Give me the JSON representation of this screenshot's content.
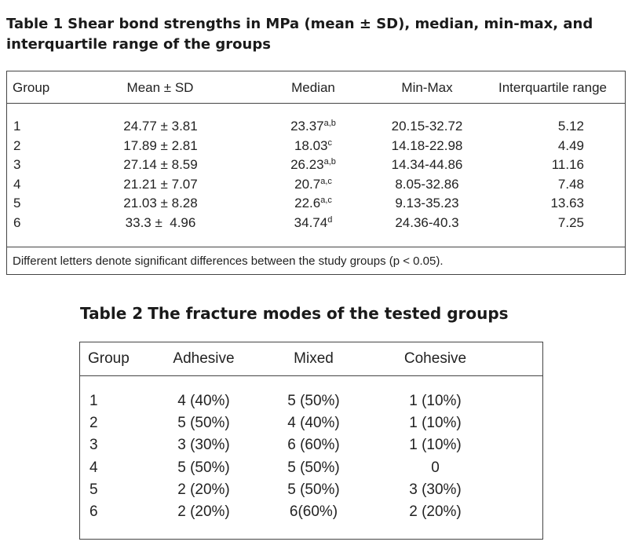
{
  "table1": {
    "label": "Table 1",
    "title_line1": "Shear bond strengths in MPa (mean ± SD), median, min-max, and",
    "title_line2": "interquartile range of the groups",
    "headers": [
      "Group",
      "Mean ± SD",
      "Median",
      "Min-Max",
      "Interquartile range"
    ],
    "rows": [
      {
        "group": "1",
        "mean_sd": "24.77 ± 3.81",
        "median": "23.37",
        "median_sup": "a,b",
        "minmax": "20.15-32.72",
        "iqr": "5.12"
      },
      {
        "group": "2",
        "mean_sd": "17.89 ± 2.81",
        "median": "18.03",
        "median_sup": "c",
        "minmax": "14.18-22.98",
        "iqr": "4.49"
      },
      {
        "group": "3",
        "mean_sd": "27.14 ± 8.59",
        "median": "26.23",
        "median_sup": "a,b",
        "minmax": "14.34-44.86",
        "iqr": "11.16"
      },
      {
        "group": "4",
        "mean_sd": "21.21 ± 7.07",
        "median": "20.7",
        "median_sup": "a,c",
        "minmax": "8.05-32.86",
        "iqr": "7.48"
      },
      {
        "group": "5",
        "mean_sd": "21.03 ± 8.28",
        "median": "22.6",
        "median_sup": "a,c",
        "minmax": "9.13-35.23",
        "iqr": "13.63"
      },
      {
        "group": "6",
        "mean_sd": "33.3 ±  4.96",
        "median": "34.74",
        "median_sup": "d",
        "minmax": "24.36-40.3",
        "iqr": "7.25"
      }
    ],
    "footnote": "Different letters denote significant differences between the study groups (p < 0.05)."
  },
  "table2": {
    "label": "Table 2",
    "title": "The fracture modes of the tested groups",
    "headers": [
      "Group",
      "Adhesive",
      "Mixed",
      "Cohesive"
    ],
    "rows": [
      {
        "group": "1",
        "adhesive": "4 (40%)",
        "mixed": "5 (50%)",
        "cohesive": "1 (10%)"
      },
      {
        "group": "2",
        "adhesive": "5 (50%)",
        "mixed": "4 (40%)",
        "cohesive": "1 (10%)"
      },
      {
        "group": "3",
        "adhesive": "3 (30%)",
        "mixed": "6 (60%)",
        "cohesive": "1 (10%)"
      },
      {
        "group": "4",
        "adhesive": "5 (50%)",
        "mixed": "5 (50%)",
        "cohesive": "0"
      },
      {
        "group": "5",
        "adhesive": "2 (20%)",
        "mixed": "5 (50%)",
        "cohesive": "3 (30%)"
      },
      {
        "group": "6",
        "adhesive": "2 (20%)",
        "mixed": "6(60%)",
        "cohesive": "2 (20%)"
      }
    ]
  }
}
